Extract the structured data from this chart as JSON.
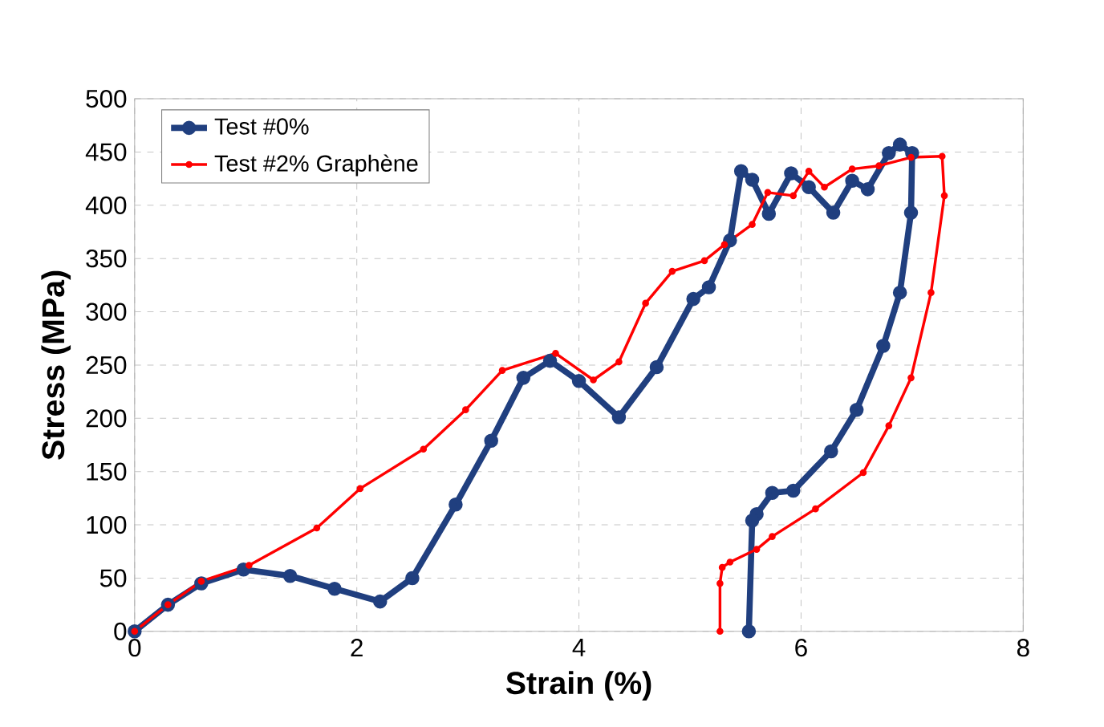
{
  "chart_data": {
    "type": "line",
    "xlabel": "Strain (%)",
    "ylabel": "Stress (MPa)",
    "xlim": [
      0,
      8
    ],
    "xticks": [
      0,
      2,
      4,
      6,
      8
    ],
    "ylim": [
      0,
      500
    ],
    "yticks": [
      0,
      50,
      100,
      150,
      200,
      250,
      300,
      350,
      400,
      450,
      500
    ],
    "grid": true,
    "legend": "top left",
    "marker": "circle",
    "series": [
      {
        "name": "Test #0%",
        "color": "#203f7f",
        "x": [
          0,
          0.3,
          0.6,
          0.98,
          1.4,
          1.8,
          2.21,
          2.5,
          2.89,
          3.21,
          3.5,
          3.74,
          4.0,
          4.36,
          4.7,
          5.03,
          5.17,
          5.36,
          5.46,
          5.56,
          5.71,
          5.91,
          6.07,
          6.29,
          6.46,
          6.6,
          6.79,
          6.89,
          7.0,
          6.99,
          6.89,
          6.74,
          6.5,
          6.27,
          5.93,
          5.74,
          5.6,
          5.56,
          5.53
        ],
        "values": [
          0,
          25,
          45,
          58,
          52,
          40,
          28,
          50,
          119,
          179,
          238,
          254,
          235,
          201,
          248,
          312,
          323,
          367,
          432,
          424,
          392,
          430,
          417,
          393,
          423,
          415,
          449,
          457,
          449,
          393,
          318,
          268,
          208,
          169,
          132,
          130,
          110,
          104,
          0
        ]
      },
      {
        "name": "Test #2% Graphène",
        "color": "#ff0000",
        "x": [
          0,
          0.3,
          0.6,
          1.03,
          1.64,
          2.03,
          2.6,
          2.98,
          3.31,
          3.79,
          4.13,
          4.36,
          4.6,
          4.84,
          5.13,
          5.31,
          5.56,
          5.7,
          5.93,
          6.07,
          6.21,
          6.46,
          6.7,
          6.99,
          7.27,
          7.29,
          7.17,
          6.99,
          6.79,
          6.56,
          6.13,
          5.74,
          5.6,
          5.36,
          5.29,
          5.27,
          5.27
        ],
        "values": [
          0,
          25,
          47,
          62,
          97,
          134,
          171,
          208,
          245,
          261,
          236,
          253,
          308,
          338,
          348,
          363,
          382,
          412,
          409,
          432,
          417,
          434,
          437,
          445,
          446,
          409,
          318,
          238,
          193,
          149,
          115,
          89,
          77,
          65,
          60,
          45,
          0
        ]
      }
    ]
  }
}
